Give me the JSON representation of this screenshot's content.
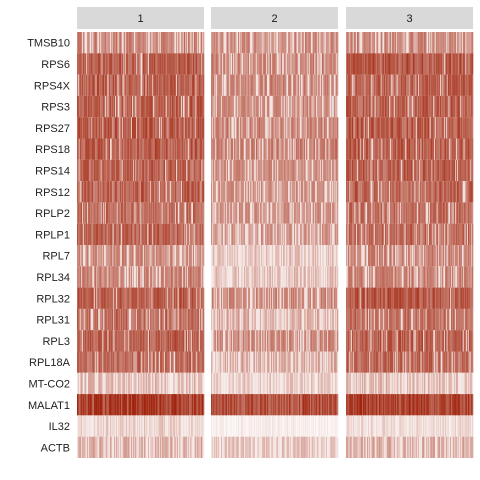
{
  "chart_data": {
    "type": "heatmap",
    "title": "",
    "xlabel": "",
    "ylabel": "",
    "facets": [
      "1",
      "2",
      "3"
    ],
    "genes": [
      "TMSB10",
      "RPS6",
      "RPS4X",
      "RPS3",
      "RPS27",
      "RPS18",
      "RPS14",
      "RPS12",
      "RPLP2",
      "RPLP1",
      "RPL7",
      "RPL34",
      "RPL32",
      "RPL31",
      "RPL3",
      "RPL18A",
      "MT-CO2",
      "MALAT1",
      "IL32",
      "ACTB"
    ],
    "mean_expression": [
      [
        0.62,
        0.58,
        0.6
      ],
      [
        0.8,
        0.62,
        0.8
      ],
      [
        0.78,
        0.6,
        0.76
      ],
      [
        0.78,
        0.58,
        0.78
      ],
      [
        0.8,
        0.62,
        0.8
      ],
      [
        0.8,
        0.62,
        0.8
      ],
      [
        0.78,
        0.56,
        0.78
      ],
      [
        0.76,
        0.55,
        0.76
      ],
      [
        0.74,
        0.56,
        0.72
      ],
      [
        0.74,
        0.52,
        0.74
      ],
      [
        0.6,
        0.35,
        0.62
      ],
      [
        0.62,
        0.38,
        0.62
      ],
      [
        0.8,
        0.6,
        0.82
      ],
      [
        0.72,
        0.45,
        0.72
      ],
      [
        0.78,
        0.6,
        0.78
      ],
      [
        0.72,
        0.45,
        0.74
      ],
      [
        0.4,
        0.32,
        0.4
      ],
      [
        0.95,
        0.85,
        0.95
      ],
      [
        0.3,
        0.05,
        0.25
      ],
      [
        0.45,
        0.35,
        0.45
      ]
    ],
    "color_low": "#ffffff",
    "color_high": "#a1250e",
    "strip_color": "#d9d9d9",
    "grid": false,
    "legend": "none"
  }
}
